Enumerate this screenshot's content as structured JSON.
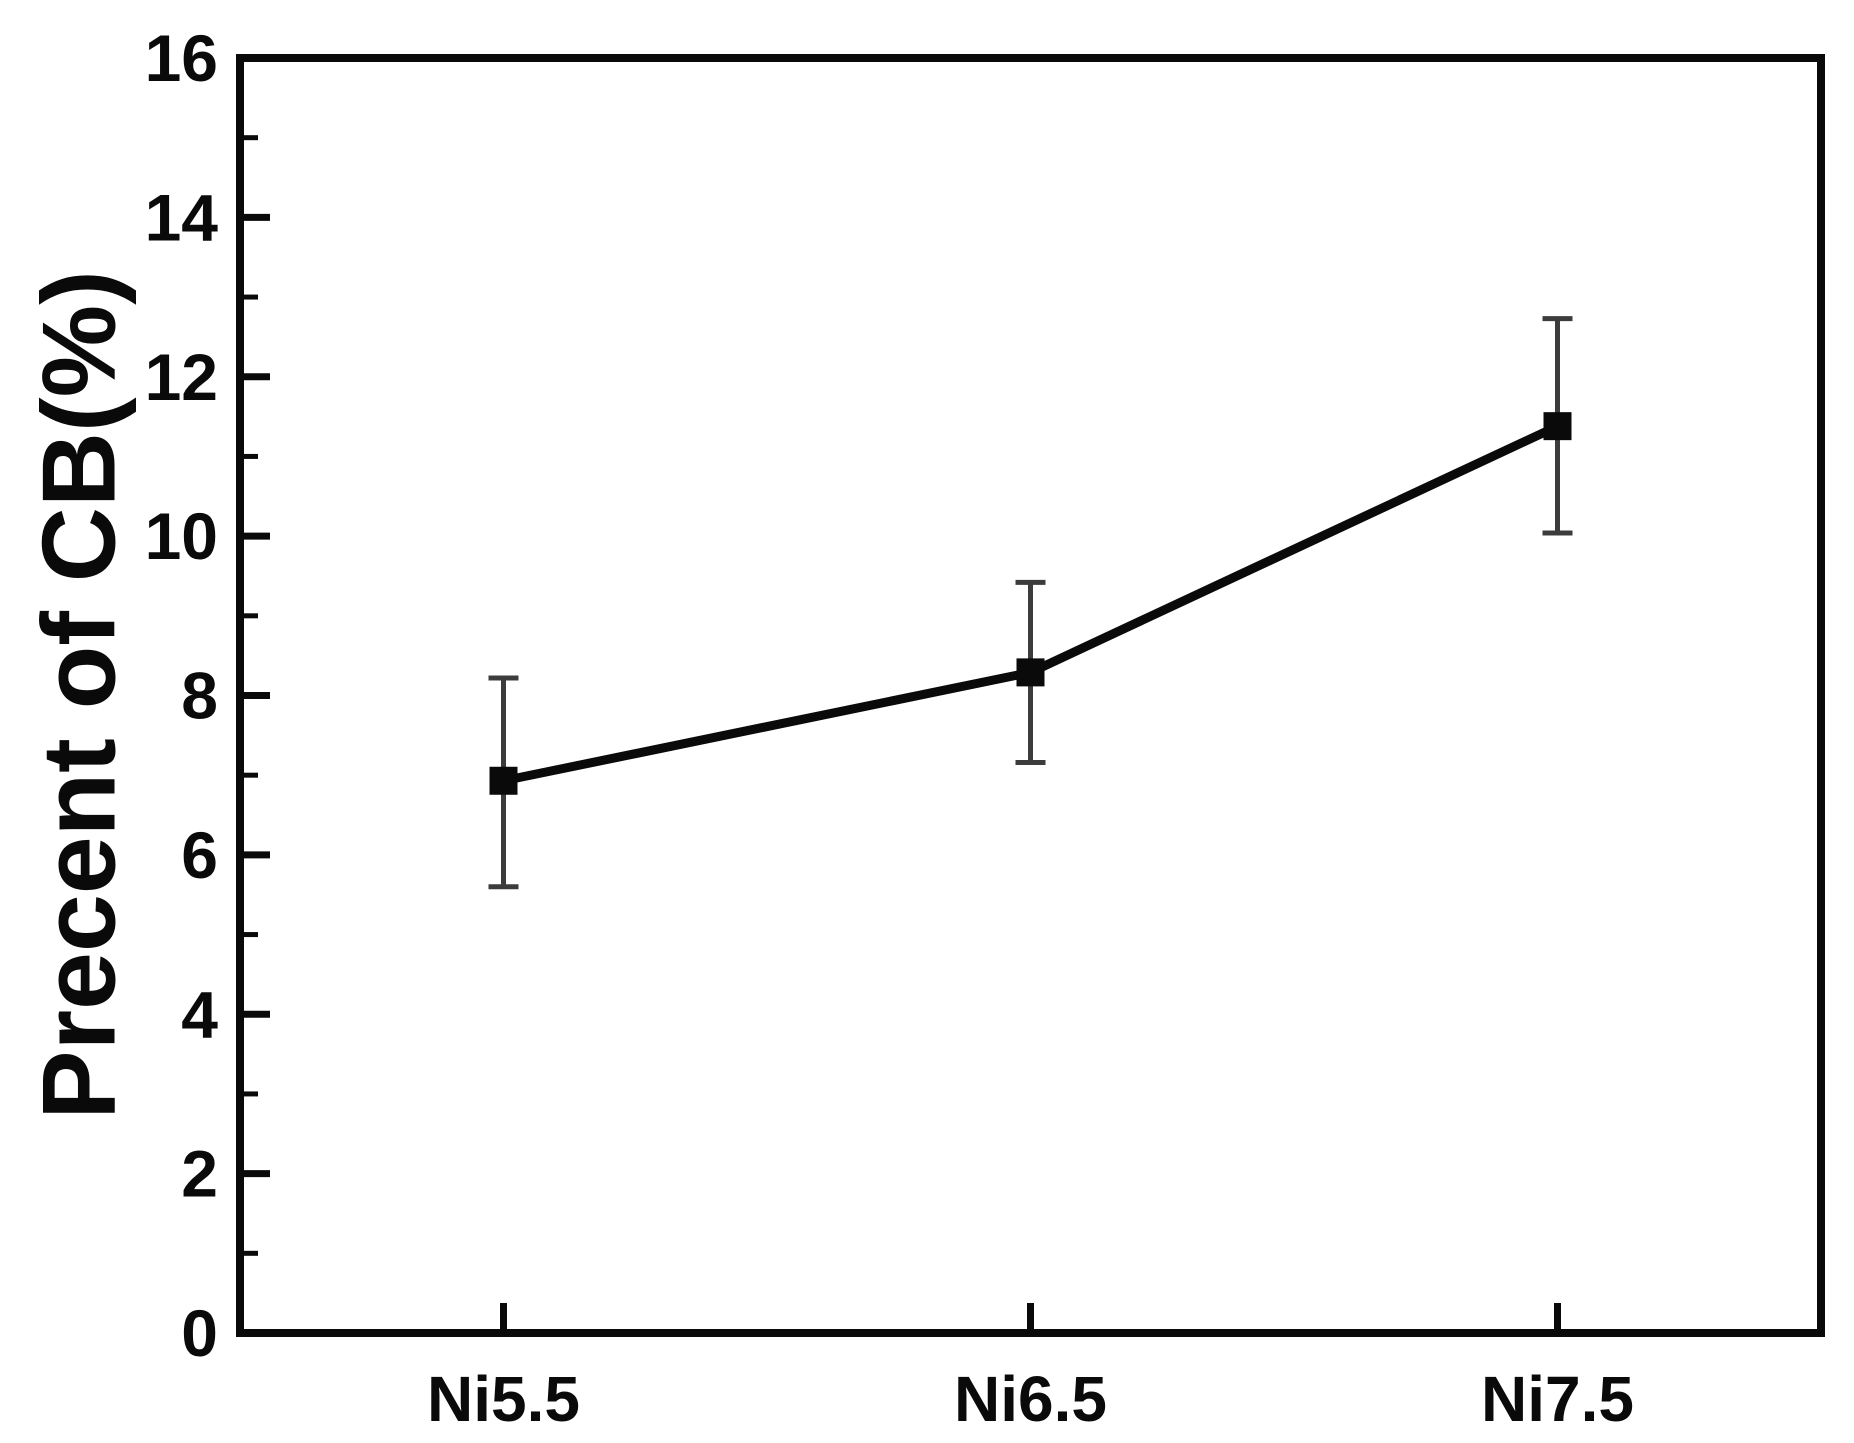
{
  "figure": {
    "background": "#ffffff",
    "axis_color": "#0a0a0a"
  },
  "chart_data": {
    "type": "line",
    "title": "",
    "xlabel": "",
    "ylabel": "Precent of CB(%)",
    "categories": [
      "Ni5.5",
      "Ni6.5",
      "Ni7.5"
    ],
    "series": [
      {
        "name": "Precent of CB",
        "values": [
          6.93,
          8.29,
          11.38
        ],
        "error_upper": [
          8.22,
          9.42,
          12.73
        ],
        "error_lower": [
          5.6,
          7.16,
          10.04
        ]
      }
    ],
    "ylim": [
      0,
      16
    ],
    "y_major_ticks": [
      0,
      2,
      4,
      6,
      8,
      10,
      12,
      14,
      16
    ],
    "y_minor_step": 1,
    "grid": "off",
    "legend": "none",
    "marker": "filled-square",
    "marker_color": "#0a0a0a",
    "line_color": "#0a0a0a",
    "error_bar_color": "#3c3c3c"
  }
}
